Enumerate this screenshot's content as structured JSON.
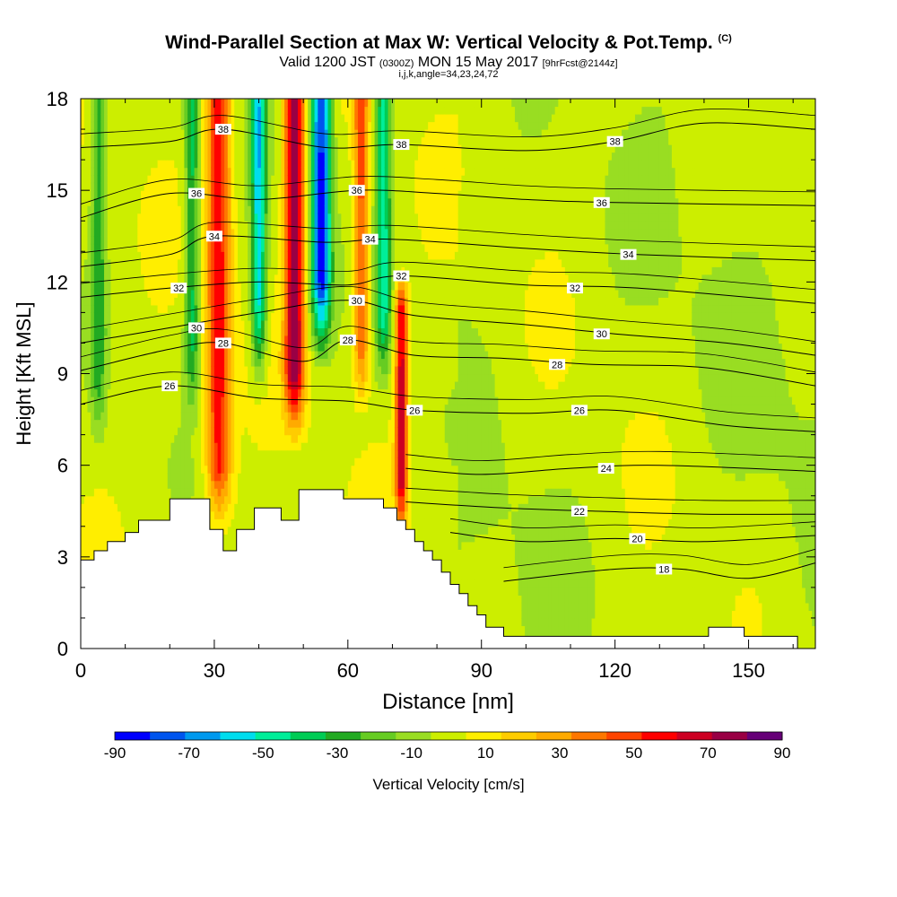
{
  "title": {
    "line1": "Wind-Parallel Section at Max W: Vertical Velocity & Pot.Temp.",
    "line1_mark": "(C)",
    "line2_pre": "Valid 1200 JST",
    "line2_utc": "(0300Z)",
    "line2_mid": "MON 15 May 2017",
    "line2_fcst": "[9hrFcst@2144z]",
    "line3": "i,j,k,angle=34,23,24,72"
  },
  "chart_data": {
    "type": "heatmap",
    "xlabel": "Distance [nm]",
    "ylabel": "Height [Kft MSL]",
    "xlim": [
      0,
      165
    ],
    "ylim": [
      0,
      18
    ],
    "x_ticks": [
      0,
      30,
      60,
      90,
      120,
      150
    ],
    "y_ticks": [
      0,
      3,
      6,
      9,
      12,
      15,
      18
    ],
    "colorbar": {
      "label": "Vertical Velocity [cm/s]",
      "levels": [
        -90,
        -80,
        -70,
        -60,
        -50,
        -40,
        -30,
        -20,
        -10,
        0,
        10,
        20,
        30,
        40,
        50,
        60,
        70,
        80,
        90
      ],
      "tick_labels": [
        "-90",
        "-70",
        "-50",
        "-30",
        "-10",
        "10",
        "30",
        "50",
        "70",
        "90"
      ],
      "colors": [
        "#0000ff",
        "#0055ee",
        "#0099ee",
        "#00ddee",
        "#00ee99",
        "#00cc55",
        "#22aa22",
        "#66cc22",
        "#99dd22",
        "#ccee00",
        "#ffee00",
        "#ffcc00",
        "#ffaa00",
        "#ff7700",
        "#ff4400",
        "#ff0000",
        "#cc0022",
        "#990044",
        "#660077"
      ]
    },
    "terrain_profile_kft": [
      [
        0,
        2.9
      ],
      [
        3,
        2.9
      ],
      [
        3,
        3.2
      ],
      [
        6,
        3.2
      ],
      [
        6,
        3.5
      ],
      [
        10,
        3.5
      ],
      [
        10,
        3.8
      ],
      [
        13,
        3.8
      ],
      [
        13,
        4.2
      ],
      [
        20,
        4.2
      ],
      [
        20,
        4.9
      ],
      [
        29,
        4.9
      ],
      [
        29,
        3.9
      ],
      [
        32,
        3.9
      ],
      [
        32,
        3.2
      ],
      [
        35,
        3.2
      ],
      [
        35,
        3.9
      ],
      [
        39,
        3.9
      ],
      [
        39,
        4.6
      ],
      [
        45,
        4.6
      ],
      [
        45,
        4.2
      ],
      [
        49,
        4.2
      ],
      [
        49,
        5.2
      ],
      [
        59,
        5.2
      ],
      [
        59,
        4.9
      ],
      [
        68,
        4.9
      ],
      [
        68,
        4.6
      ],
      [
        71,
        4.6
      ],
      [
        71,
        4.2
      ],
      [
        73,
        4.2
      ],
      [
        73,
        3.9
      ],
      [
        75,
        3.9
      ],
      [
        75,
        3.5
      ],
      [
        77,
        3.5
      ],
      [
        77,
        3.2
      ],
      [
        79,
        3.2
      ],
      [
        79,
        2.9
      ],
      [
        81,
        2.9
      ],
      [
        81,
        2.5
      ],
      [
        83,
        2.5
      ],
      [
        83,
        2.1
      ],
      [
        85,
        2.1
      ],
      [
        85,
        1.8
      ],
      [
        87,
        1.8
      ],
      [
        87,
        1.4
      ],
      [
        89,
        1.4
      ],
      [
        89,
        1.1
      ],
      [
        91,
        1.1
      ],
      [
        91,
        0.7
      ],
      [
        95,
        0.7
      ],
      [
        95,
        0.4
      ],
      [
        141,
        0.4
      ],
      [
        141,
        0.7
      ],
      [
        149,
        0.7
      ],
      [
        149,
        0.4
      ],
      [
        161,
        0.4
      ],
      [
        161,
        0
      ],
      [
        165,
        0
      ]
    ],
    "updraft_cores": [
      {
        "x": 31,
        "ymin": 5,
        "ymax": 18,
        "width_nm": 5,
        "w_max": 60
      },
      {
        "x": 48,
        "ymin": 8,
        "ymax": 18,
        "width_nm": 4,
        "w_max": 80
      },
      {
        "x": 63,
        "ymin": 9,
        "ymax": 18,
        "width_nm": 3,
        "w_max": 50
      },
      {
        "x": 72,
        "ymin": 4.5,
        "ymax": 11,
        "width_nm": 2.5,
        "w_max": 70
      }
    ],
    "downdraft_cores": [
      {
        "x": 4,
        "ymin": 8,
        "ymax": 18,
        "width_nm": 3,
        "w_min": -30
      },
      {
        "x": 25,
        "ymin": 9,
        "ymax": 18,
        "width_nm": 3,
        "w_min": -40
      },
      {
        "x": 40,
        "ymin": 10,
        "ymax": 18,
        "width_nm": 3,
        "w_min": -60
      },
      {
        "x": 54,
        "ymin": 11,
        "ymax": 18,
        "width_nm": 4,
        "w_min": -90
      },
      {
        "x": 68,
        "ymin": 10,
        "ymax": 18,
        "width_nm": 3,
        "w_min": -50
      }
    ],
    "theta_contours": [
      {
        "label": "18",
        "points": [
          [
            95,
            2.2
          ],
          [
            120,
            2.6
          ],
          [
            135,
            2.6
          ],
          [
            150,
            2.3
          ],
          [
            165,
            2.8
          ]
        ],
        "label_at": [
          131,
          2.6
        ]
      },
      {
        "label": "20",
        "points": [
          [
            83,
            3.8
          ],
          [
            100,
            3.5
          ],
          [
            120,
            3.6
          ],
          [
            140,
            3.5
          ],
          [
            165,
            3.7
          ]
        ],
        "label_at": [
          125,
          3.6
        ]
      },
      {
        "label": "22",
        "points": [
          [
            73,
            4.8
          ],
          [
            95,
            4.6
          ],
          [
            115,
            4.5
          ],
          [
            140,
            4.4
          ],
          [
            165,
            4.4
          ]
        ],
        "label_at": [
          112,
          4.5
        ]
      },
      {
        "label": "24",
        "points": [
          [
            73,
            5.9
          ],
          [
            90,
            5.7
          ],
          [
            110,
            5.9
          ],
          [
            130,
            6.0
          ],
          [
            165,
            5.8
          ]
        ],
        "label_at": [
          118,
          5.9
        ]
      },
      {
        "label": "26",
        "points": [
          [
            0,
            8.0
          ],
          [
            20,
            8.6
          ],
          [
            40,
            8.2
          ],
          [
            60,
            8.1
          ],
          [
            75,
            7.8
          ],
          [
            100,
            7.7
          ],
          [
            120,
            7.8
          ],
          [
            145,
            7.3
          ],
          [
            165,
            7.1
          ]
        ],
        "label_at": [
          112,
          7.8
        ]
      },
      {
        "label": "28",
        "points": [
          [
            0,
            9.1
          ],
          [
            20,
            9.8
          ],
          [
            32,
            10.0
          ],
          [
            50,
            9.4
          ],
          [
            60,
            10.1
          ],
          [
            75,
            9.6
          ],
          [
            95,
            9.5
          ],
          [
            115,
            9.3
          ],
          [
            140,
            9.2
          ],
          [
            165,
            8.6
          ]
        ],
        "label_at": [
          107,
          9.3
        ]
      },
      {
        "label": "30",
        "points": [
          [
            0,
            10.0
          ],
          [
            20,
            10.5
          ],
          [
            40,
            11.0
          ],
          [
            60,
            11.4
          ],
          [
            75,
            10.9
          ],
          [
            100,
            10.6
          ],
          [
            120,
            10.3
          ],
          [
            145,
            10.0
          ],
          [
            165,
            9.6
          ]
        ],
        "label_at": [
          117,
          10.3
        ]
      },
      {
        "label": "32",
        "points": [
          [
            0,
            11.5
          ],
          [
            20,
            11.8
          ],
          [
            40,
            12.0
          ],
          [
            60,
            11.9
          ],
          [
            72,
            12.2
          ],
          [
            100,
            11.9
          ],
          [
            125,
            11.8
          ],
          [
            165,
            11.3
          ]
        ],
        "label_at": [
          111,
          11.8
        ]
      },
      {
        "label": "34",
        "points": [
          [
            0,
            12.5
          ],
          [
            20,
            12.9
          ],
          [
            30,
            13.5
          ],
          [
            55,
            13.3
          ],
          [
            70,
            13.4
          ],
          [
            100,
            13.1
          ],
          [
            125,
            12.9
          ],
          [
            165,
            12.7
          ]
        ],
        "label_at": [
          123,
          12.9
        ]
      },
      {
        "label": "36",
        "points": [
          [
            0,
            14.1
          ],
          [
            20,
            14.9
          ],
          [
            40,
            14.7
          ],
          [
            62,
            15.0
          ],
          [
            80,
            14.9
          ],
          [
            100,
            14.7
          ],
          [
            120,
            14.6
          ],
          [
            165,
            14.5
          ]
        ],
        "label_at": [
          117,
          14.6
        ]
      },
      {
        "label": "38",
        "points": [
          [
            0,
            16.4
          ],
          [
            20,
            16.6
          ],
          [
            32,
            17.0
          ],
          [
            55,
            16.4
          ],
          [
            72,
            16.5
          ],
          [
            100,
            16.3
          ],
          [
            120,
            16.6
          ],
          [
            140,
            17.2
          ],
          [
            165,
            17.0
          ]
        ],
        "label_at": [
          120,
          16.6
        ]
      }
    ],
    "extra_labels": [
      {
        "label": "38",
        "at": [
          32,
          17.0
        ]
      },
      {
        "label": "38",
        "at": [
          72,
          16.5
        ]
      },
      {
        "label": "36",
        "at": [
          26,
          14.9
        ]
      },
      {
        "label": "36",
        "at": [
          62,
          15.0
        ]
      },
      {
        "label": "34",
        "at": [
          30,
          13.5
        ]
      },
      {
        "label": "34",
        "at": [
          65,
          13.4
        ]
      },
      {
        "label": "32",
        "at": [
          22,
          11.8
        ]
      },
      {
        "label": "32",
        "at": [
          72,
          12.2
        ]
      },
      {
        "label": "30",
        "at": [
          26,
          10.5
        ]
      },
      {
        "label": "30",
        "at": [
          62,
          11.4
        ]
      },
      {
        "label": "28",
        "at": [
          32,
          10.0
        ]
      },
      {
        "label": "28",
        "at": [
          60,
          10.1
        ]
      },
      {
        "label": "26",
        "at": [
          20,
          8.6
        ]
      },
      {
        "label": "26",
        "at": [
          75,
          7.8
        ]
      }
    ]
  }
}
